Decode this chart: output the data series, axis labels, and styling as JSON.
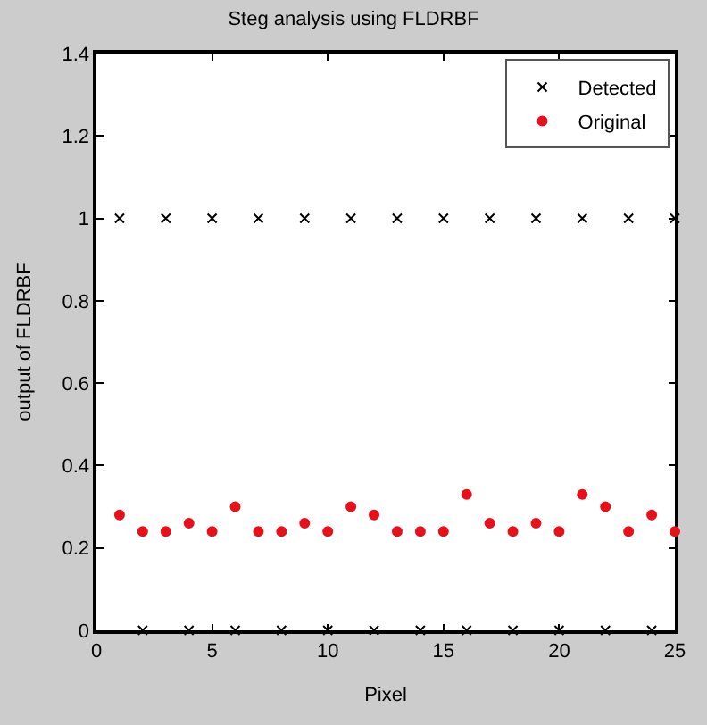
{
  "chart_data": {
    "type": "scatter",
    "title": "Steg analysis using FLDRBF",
    "xlabel": "Pixel",
    "ylabel": "output of FLDRBF",
    "x": [
      1,
      2,
      3,
      4,
      5,
      6,
      7,
      8,
      9,
      10,
      11,
      12,
      13,
      14,
      15,
      16,
      17,
      18,
      19,
      20,
      21,
      22,
      23,
      24,
      25
    ],
    "series": [
      {
        "name": "Detected",
        "color": "#000000",
        "marker": "cross",
        "values": [
          1,
          0,
          1,
          0,
          1,
          0,
          1,
          0,
          1,
          0,
          1,
          0,
          1,
          0,
          1,
          0,
          1,
          0,
          1,
          0,
          1,
          0,
          1,
          0,
          1
        ]
      },
      {
        "name": "Original",
        "color": "#e8101a",
        "marker": "circle",
        "values": [
          0.28,
          0.24,
          0.24,
          0.26,
          0.24,
          0.3,
          0.24,
          0.24,
          0.26,
          0.24,
          0.3,
          0.28,
          0.24,
          0.24,
          0.24,
          0.33,
          0.26,
          0.24,
          0.26,
          0.24,
          0.33,
          0.3,
          0.24,
          0.28,
          0.24
        ]
      }
    ],
    "xlim": [
      0,
      25
    ],
    "xticks": [
      0,
      5,
      10,
      15,
      20,
      25
    ],
    "ylim": [
      0,
      1.4
    ],
    "yticks": [
      0,
      0.2,
      0.4,
      0.6,
      0.8,
      1,
      1.2,
      1.4
    ],
    "legend": "top right"
  }
}
